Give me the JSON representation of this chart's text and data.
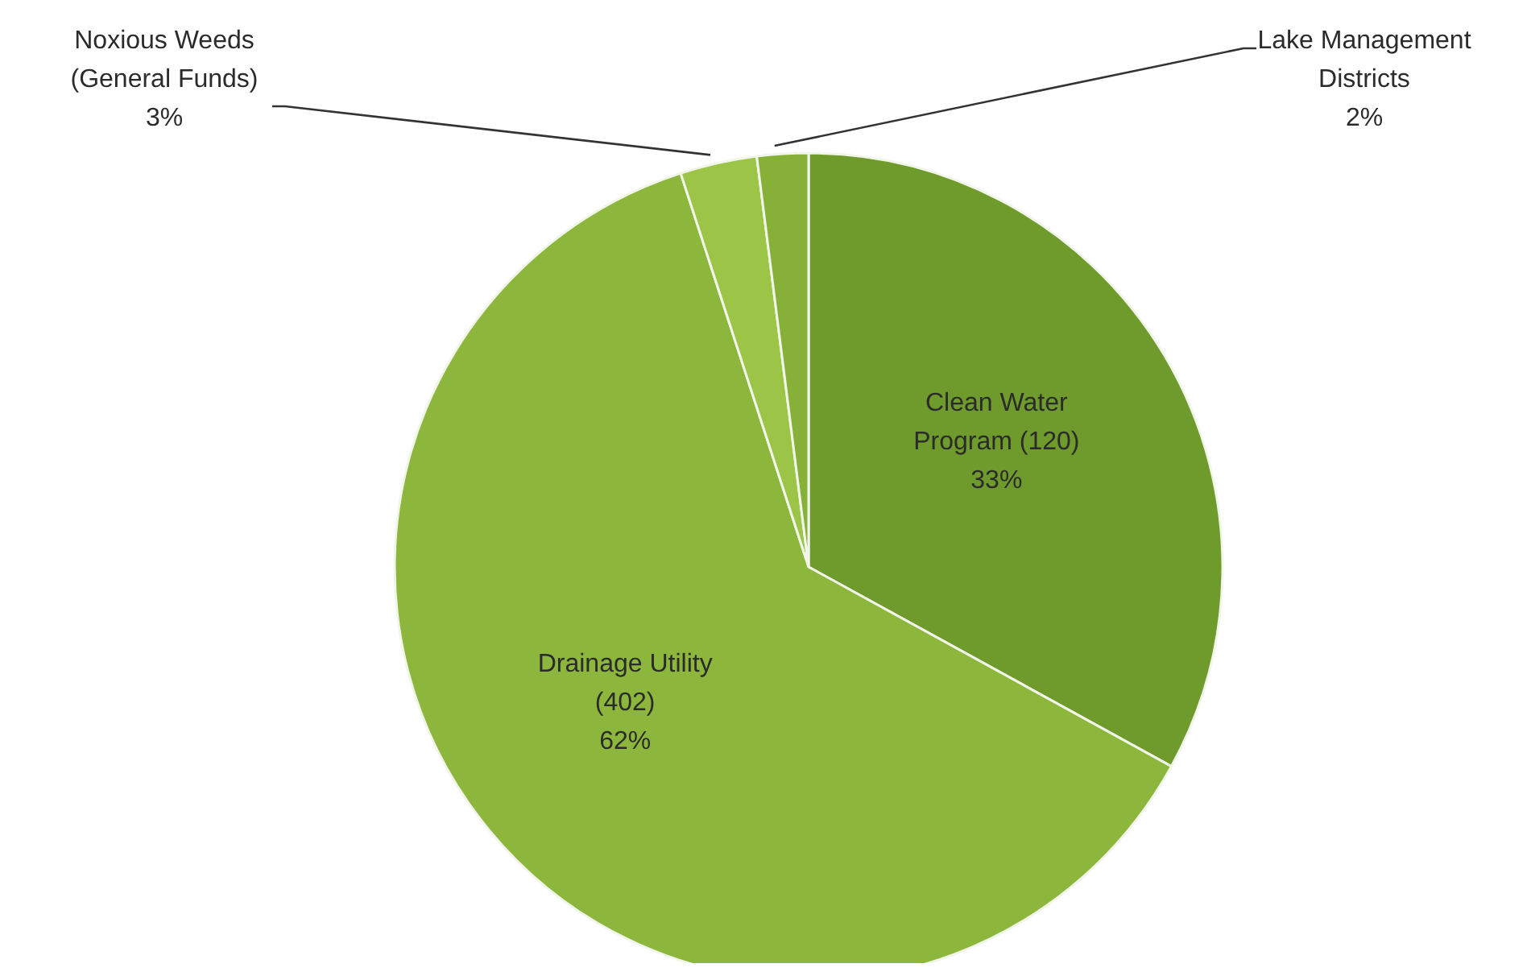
{
  "chart_data": {
    "type": "pie",
    "categories": [
      "Clean Water Program (120)",
      "Drainage Utility (402)",
      "Noxious Weeds (General Funds)",
      "Lake Management Districts"
    ],
    "values": [
      33,
      62,
      3,
      2
    ],
    "colors": [
      "#6f9a2c",
      "#8db73c",
      "#9cc447",
      "#86b037"
    ],
    "value_labels": [
      "33%",
      "62%",
      "3%",
      "2%"
    ],
    "legend": false
  }
}
